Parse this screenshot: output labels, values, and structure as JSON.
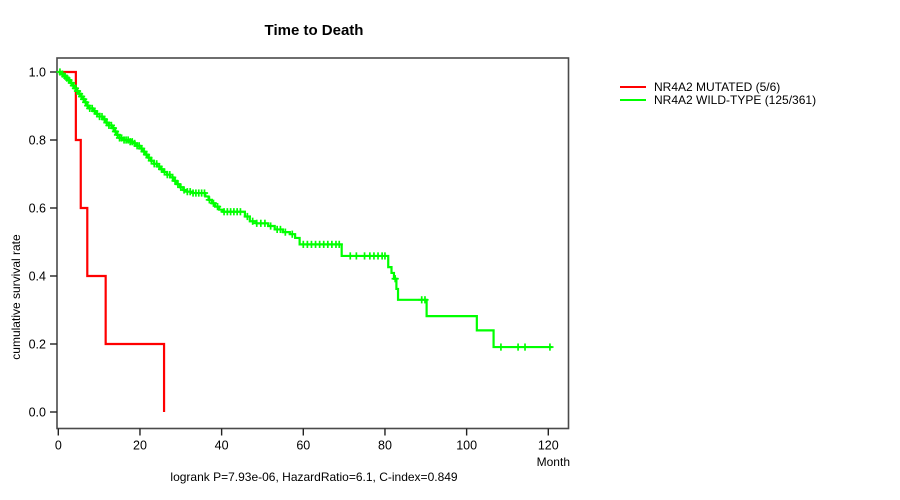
{
  "title": "Time to Death",
  "ylabel": "cumulative survival rate",
  "xlabel": "Month",
  "footer": "logrank P=7.93e-06, HazardRatio=6.1, C-index=0.849",
  "legend": {
    "items": [
      {
        "label": "NR4A2 MUTATED (5/6)",
        "color": "#ff0000"
      },
      {
        "label": "NR4A2 WILD-TYPE (125/361)",
        "color": "#00ff00"
      }
    ]
  },
  "chart_data": {
    "type": "line",
    "subtype": "kaplan-meier-step",
    "title": "Time to Death",
    "xlabel": "Month",
    "ylabel": "cumulative survival rate",
    "annotation": "logrank P=7.93e-06, HazardRatio=6.1, C-index=0.849",
    "xlim": [
      0,
      125
    ],
    "ylim": [
      0.0,
      1.0
    ],
    "xticks": [
      0,
      20,
      40,
      60,
      80,
      100,
      120
    ],
    "xtick_labels": [
      "0",
      "20",
      "40",
      "60",
      "80",
      "100",
      "120"
    ],
    "yticks": [
      0.0,
      0.2,
      0.4,
      0.6,
      0.8,
      1.0
    ],
    "ytick_labels": [
      "0.0",
      "0.2",
      "0.4",
      "0.6",
      "0.8",
      "1.0"
    ],
    "grid": false,
    "legend_position": "right-outside",
    "axis_color": "#4a4a4a",
    "series": [
      {
        "name": "NR4A2 MUTATED (5/6)",
        "color": "#ff0000",
        "n_events": "5/6",
        "end_month": 25.9,
        "steps": [
          [
            0,
            1.0
          ],
          [
            4.3,
            0.8
          ],
          [
            5.5,
            0.6
          ],
          [
            7.1,
            0.4
          ],
          [
            11.6,
            0.2
          ],
          [
            25.9,
            0.0
          ]
        ],
        "censors": []
      },
      {
        "name": "NR4A2 WILD-TYPE (125/361)",
        "color": "#00ff00",
        "n_events": "125/361",
        "end_month": 121,
        "steps": [
          [
            0,
            1.0
          ],
          [
            0.6,
            0.994
          ],
          [
            1.2,
            0.988
          ],
          [
            1.8,
            0.982
          ],
          [
            2.4,
            0.976
          ],
          [
            3.0,
            0.968
          ],
          [
            3.5,
            0.96
          ],
          [
            4.0,
            0.952
          ],
          [
            4.5,
            0.944
          ],
          [
            5.0,
            0.936
          ],
          [
            5.5,
            0.928
          ],
          [
            6.0,
            0.92
          ],
          [
            6.5,
            0.911
          ],
          [
            7.0,
            0.901
          ],
          [
            7.5,
            0.893
          ],
          [
            8.5,
            0.885
          ],
          [
            9.3,
            0.877
          ],
          [
            10.1,
            0.869
          ],
          [
            10.9,
            0.861
          ],
          [
            11.7,
            0.851
          ],
          [
            12.4,
            0.843
          ],
          [
            13.1,
            0.835
          ],
          [
            13.8,
            0.825
          ],
          [
            14.4,
            0.815
          ],
          [
            15.0,
            0.806
          ],
          [
            16.0,
            0.8
          ],
          [
            17.5,
            0.795
          ],
          [
            18.5,
            0.79
          ],
          [
            19.2,
            0.783
          ],
          [
            19.9,
            0.775
          ],
          [
            20.6,
            0.766
          ],
          [
            21.3,
            0.757
          ],
          [
            22.0,
            0.748
          ],
          [
            22.7,
            0.739
          ],
          [
            23.4,
            0.73
          ],
          [
            24.2,
            0.722
          ],
          [
            25.0,
            0.714
          ],
          [
            25.8,
            0.706
          ],
          [
            26.6,
            0.698
          ],
          [
            27.4,
            0.69
          ],
          [
            28.2,
            0.68
          ],
          [
            29.0,
            0.67
          ],
          [
            29.8,
            0.661
          ],
          [
            30.6,
            0.653
          ],
          [
            31.4,
            0.648
          ],
          [
            33.0,
            0.644
          ],
          [
            36.0,
            0.634
          ],
          [
            36.8,
            0.624
          ],
          [
            37.6,
            0.614
          ],
          [
            38.4,
            0.604
          ],
          [
            39.4,
            0.595
          ],
          [
            40.2,
            0.589
          ],
          [
            45.7,
            0.575
          ],
          [
            46.9,
            0.561
          ],
          [
            48.5,
            0.555
          ],
          [
            51.4,
            0.547
          ],
          [
            53.0,
            0.537
          ],
          [
            55.0,
            0.529
          ],
          [
            56.7,
            0.523
          ],
          [
            58.0,
            0.512
          ],
          [
            59.1,
            0.493
          ],
          [
            69.4,
            0.459
          ],
          [
            80.8,
            0.426
          ],
          [
            81.6,
            0.409
          ],
          [
            82.2,
            0.392
          ],
          [
            82.8,
            0.362
          ],
          [
            83.2,
            0.33
          ],
          [
            90.2,
            0.282
          ],
          [
            102.5,
            0.24
          ],
          [
            106.6,
            0.191
          ]
        ],
        "censors": [
          0.4,
          1.0,
          1.6,
          2.1,
          2.6,
          3.2,
          3.7,
          4.2,
          4.7,
          5.2,
          5.7,
          6.2,
          6.7,
          7.2,
          7.7,
          8.3,
          8.9,
          9.5,
          10.1,
          10.7,
          11.3,
          11.9,
          12.4,
          13.0,
          13.5,
          14.0,
          14.5,
          15.0,
          15.5,
          16.1,
          16.6,
          17.1,
          17.6,
          18.1,
          18.7,
          19.3,
          19.8,
          20.4,
          21.0,
          21.6,
          22.2,
          22.8,
          23.5,
          24.1,
          24.7,
          25.3,
          26.0,
          26.7,
          27.3,
          28.0,
          28.6,
          29.3,
          30.0,
          30.8,
          31.6,
          32.3,
          33.0,
          33.7,
          34.4,
          35.1,
          35.8,
          37.0,
          38.0,
          39.0,
          40.6,
          41.4,
          42.2,
          43.0,
          43.8,
          44.6,
          46.3,
          47.6,
          48.6,
          49.6,
          50.6,
          52.0,
          53.6,
          54.4,
          55.6,
          57.3,
          60.0,
          61.0,
          62.0,
          63.0,
          64.0,
          65.0,
          66.0,
          67.0,
          68.0,
          68.8,
          71.5,
          73.0,
          75.0,
          76.3,
          77.3,
          78.3,
          79.3,
          80.0,
          82.5,
          89.0,
          89.8,
          108.4,
          112.6,
          114.3,
          120.4
        ]
      }
    ]
  }
}
